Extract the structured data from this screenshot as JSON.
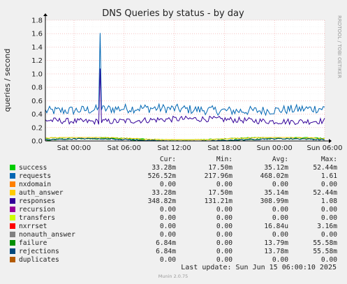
{
  "title": "DNS Queries by status - by day",
  "side_text": "RRDTOOL / TOBI OETIKER",
  "footer": "Munin 2.0.75",
  "last_update": "Last update: Sun Jun 15 06:00:10 2025",
  "legend_headers": [
    "Cur:",
    "Min:",
    "Avg:",
    "Max:"
  ],
  "legend": [
    {
      "name": "success",
      "color": "#00cc00",
      "cur": "33.28m",
      "min": "17.50m",
      "avg": "35.12m",
      "max": "52.44m"
    },
    {
      "name": "requests",
      "color": "#0066b3",
      "cur": "526.52m",
      "min": "217.96m",
      "avg": "468.02m",
      "max": "1.61"
    },
    {
      "name": "nxdomain",
      "color": "#ff8000",
      "cur": "0.00",
      "min": "0.00",
      "avg": "0.00",
      "max": "0.00"
    },
    {
      "name": "auth_answer",
      "color": "#ffcc00",
      "cur": "33.28m",
      "min": "17.50m",
      "avg": "35.14m",
      "max": "52.44m"
    },
    {
      "name": "responses",
      "color": "#330099",
      "cur": "348.82m",
      "min": "131.21m",
      "avg": "308.99m",
      "max": "1.08"
    },
    {
      "name": "recursion",
      "color": "#990099",
      "cur": "0.00",
      "min": "0.00",
      "avg": "0.00",
      "max": "0.00"
    },
    {
      "name": "transfers",
      "color": "#ccff00",
      "cur": "0.00",
      "min": "0.00",
      "avg": "0.00",
      "max": "0.00"
    },
    {
      "name": "nxrrset",
      "color": "#ff0000",
      "cur": "0.00",
      "min": "0.00",
      "avg": "16.84u",
      "max": "3.16m"
    },
    {
      "name": "nonauth_answer",
      "color": "#808080",
      "cur": "0.00",
      "min": "0.00",
      "avg": "0.00",
      "max": "0.00"
    },
    {
      "name": "failure",
      "color": "#008f00",
      "cur": "6.84m",
      "min": "0.00",
      "avg": "13.79m",
      "max": "55.58m"
    },
    {
      "name": "rejections",
      "color": "#00487d",
      "cur": "6.84m",
      "min": "0.00",
      "avg": "13.78m",
      "max": "55.58m"
    },
    {
      "name": "duplicates",
      "color": "#b35a00",
      "cur": "0.00",
      "min": "0.00",
      "avg": "0.00",
      "max": "0.00"
    }
  ],
  "chart_data": {
    "type": "line",
    "title": "DNS Queries by status - by day",
    "ylabel": "queries / second",
    "xlabel": "",
    "ylim": [
      0,
      1.8
    ],
    "yticks": [
      0.0,
      0.2,
      0.4,
      0.6,
      0.8,
      1.0,
      1.2,
      1.4,
      1.6,
      1.8
    ],
    "ytick_labels": [
      "0.0",
      "0.2",
      "0.4",
      "0.6",
      "0.8",
      "1.0",
      "1.2",
      "1.4",
      "1.6",
      "1.8"
    ],
    "xticks": [
      "Sat 00:00",
      "Sat 06:00",
      "Sat 12:00",
      "Sat 18:00",
      "Sun 00:00",
      "Sun 06:00"
    ],
    "grid": true,
    "series": [
      {
        "name": "requests",
        "color": "#0066b3",
        "base": 0.468,
        "noise": 0.07,
        "min": 0.22,
        "max": 1.61,
        "spike_at": 0.195
      },
      {
        "name": "responses",
        "color": "#330099",
        "base": 0.309,
        "noise": 0.045,
        "min": 0.13,
        "max": 1.08,
        "spike_at": 0.195
      },
      {
        "name": "success",
        "color": "#00cc00",
        "base": 0.035,
        "noise": 0.008,
        "min": 0.0175,
        "max": 0.0524
      },
      {
        "name": "auth_answer",
        "color": "#ffcc00",
        "base": 0.035,
        "noise": 0.008,
        "min": 0.0175,
        "max": 0.0524
      },
      {
        "name": "failure",
        "color": "#008f00",
        "base": 0.0138,
        "noise": 0.01,
        "min": 0.0,
        "max": 0.0556
      },
      {
        "name": "rejections",
        "color": "#00487d",
        "base": 0.0138,
        "noise": 0.01,
        "min": 0.0,
        "max": 0.0556
      }
    ]
  }
}
